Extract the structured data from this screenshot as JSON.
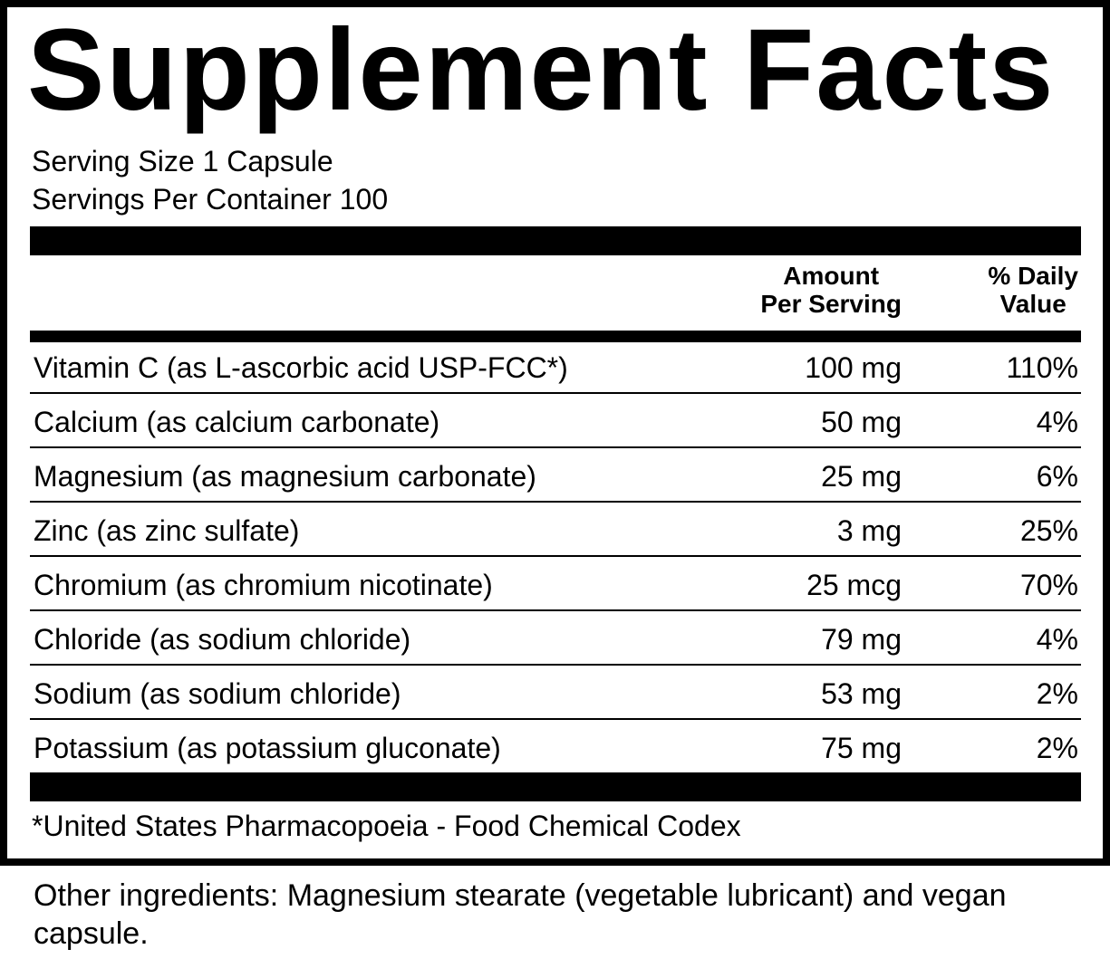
{
  "header": {
    "title": "Supplement Facts"
  },
  "serving": {
    "size": "Serving Size 1 Capsule",
    "servings": "Servings Per Container 100"
  },
  "table": {
    "amount_header": [
      "Amount",
      "Per Serving"
    ],
    "dv_header": [
      "% Daily",
      "Value"
    ],
    "rows": [
      [
        "Vitamin C (as L-ascorbic acid USP-FCC*)",
        "100 mg",
        "110%"
      ],
      [
        "Calcium (as calcium carbonate)",
        "50 mg",
        "4%"
      ],
      [
        "Magnesium (as magnesium carbonate)",
        "25 mg",
        "6%"
      ],
      [
        "Zinc (as zinc sulfate)",
        "3 mg",
        "25%"
      ],
      [
        "Chromium (as chromium nicotinate)",
        "25 mcg",
        "70%"
      ],
      [
        "Chloride (as sodium chloride)",
        "79 mg",
        "4%"
      ],
      [
        "Sodium (as sodium chloride)",
        "53 mg",
        "2%"
      ],
      [
        "Potassium (as potassium gluconate)",
        "75 mg",
        "2%"
      ]
    ]
  },
  "footnote": "*United States Pharmacopoeia - Food Chemical Codex",
  "other_ingredients": "Other ingredients: Magnesium stearate (vegetable lubricant) and vegan capsule."
}
